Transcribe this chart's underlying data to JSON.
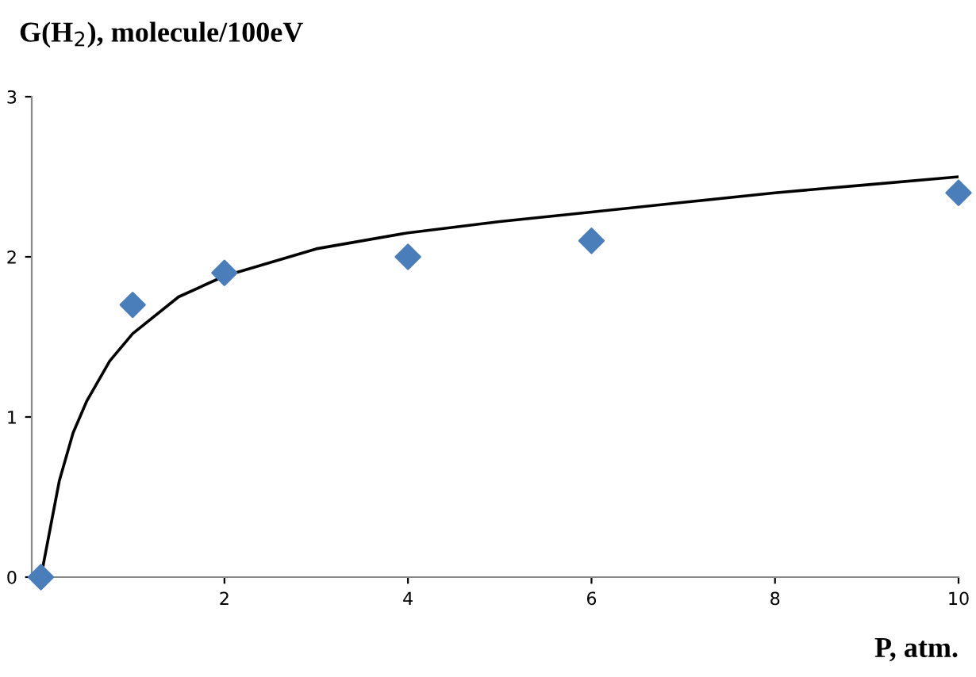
{
  "chart_data": {
    "type": "scatter",
    "ylabel": "G(H$_{2}$), molecule/100eV",
    "xlabel": "P, atm.",
    "series": [
      {
        "color": "#4a7ebb",
        "marker": "diamond",
        "x": [
          0,
          1,
          2,
          4,
          6,
          10
        ],
        "values": [
          0,
          1.7,
          1.9,
          2.0,
          2.1,
          2.4
        ]
      },
      {
        "type": "line",
        "color": "#000000",
        "marker": "none",
        "line_style": "solid",
        "x": [
          0,
          0.1,
          0.2,
          0.35,
          0.5,
          0.75,
          1,
          1.5,
          2,
          3,
          4,
          5,
          6,
          7,
          8,
          9,
          10
        ],
        "values": [
          0,
          0.3,
          0.6,
          0.9,
          1.1,
          1.35,
          1.52,
          1.75,
          1.88,
          2.05,
          2.15,
          2.22,
          2.28,
          2.34,
          2.4,
          2.45,
          2.5
        ]
      }
    ],
    "xlim": [
      -0.1,
      10
    ],
    "ylim": [
      0,
      3
    ],
    "xticks": [
      2,
      4,
      6,
      8,
      10
    ],
    "yticks": [
      0,
      1,
      2,
      3
    ],
    "grid": false,
    "legend": false
  }
}
